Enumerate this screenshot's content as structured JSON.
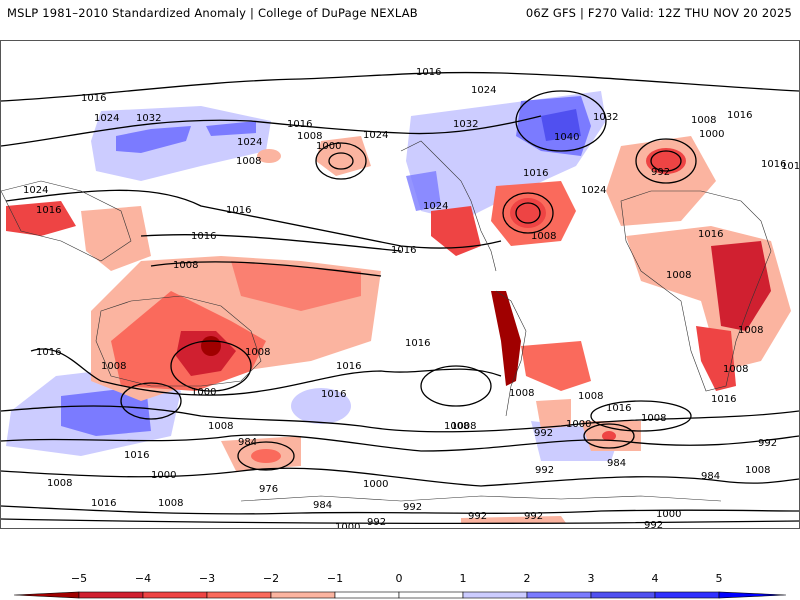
{
  "header": {
    "title_left": "MSLP 1981–2010 Standardized Anomaly | College of DuPage NEXLAB",
    "title_right": "06Z GFS | F270 Valid: 12Z THU NOV 20 2025"
  },
  "map": {
    "contour_labels": [
      {
        "text": "1016",
        "id": "nh-1016-top"
      },
      {
        "text": "1016",
        "id": "asia-1016"
      },
      {
        "text": "1024",
        "id": "asia-1024-a"
      },
      {
        "text": "1032",
        "id": "siberia-1032"
      },
      {
        "text": "1024",
        "id": "asia-1024-b"
      },
      {
        "text": "1016",
        "id": "pac-1016-a"
      },
      {
        "text": "1008",
        "id": "pac-1008-a"
      },
      {
        "text": "1000",
        "id": "pac-1000"
      },
      {
        "text": "1024",
        "id": "alaska-1024"
      },
      {
        "text": "1024",
        "id": "arctic-1024"
      },
      {
        "text": "1032",
        "id": "canada-1032"
      },
      {
        "text": "1040",
        "id": "greenland-1040"
      },
      {
        "text": "1032",
        "id": "greenland-1032"
      },
      {
        "text": "1008",
        "id": "eur-1008"
      },
      {
        "text": "1016",
        "id": "eur-1016"
      },
      {
        "text": "1000",
        "id": "eur-1000"
      },
      {
        "text": "992",
        "id": "eur-992"
      },
      {
        "text": "1016",
        "id": "asia-1016-right"
      },
      {
        "text": "1024",
        "id": "atl-1024"
      },
      {
        "text": "1016",
        "id": "atl-1016-a"
      },
      {
        "text": "1008",
        "id": "atl-1008"
      },
      {
        "text": "1024",
        "id": "us-1024"
      },
      {
        "text": "1016",
        "id": "india-1016"
      },
      {
        "text": "1024",
        "id": "china-1024"
      },
      {
        "text": "1016",
        "id": "pac-1016-b"
      },
      {
        "text": "1008",
        "id": "pac-1008-b"
      },
      {
        "text": "1016",
        "id": "epac-1016"
      },
      {
        "text": "1016",
        "id": "atl-1016-b"
      },
      {
        "text": "1016",
        "id": "africa-1016-n"
      },
      {
        "text": "1008",
        "id": "africa-1008-w"
      },
      {
        "text": "1008",
        "id": "africa-1008-e"
      },
      {
        "text": "1008",
        "id": "pac-1008-c"
      },
      {
        "text": "1016",
        "id": "io-1016"
      },
      {
        "text": "1008",
        "id": "aus-1008-w"
      },
      {
        "text": "1008",
        "id": "aus-1008-e"
      },
      {
        "text": "1000",
        "id": "aus-1000"
      },
      {
        "text": "1016",
        "id": "spac-1016-a"
      },
      {
        "text": "1016",
        "id": "spac-1016-b"
      },
      {
        "text": "1016",
        "id": "spac-1016-c"
      },
      {
        "text": "1008",
        "id": "sam-1008"
      },
      {
        "text": "1008",
        "id": "sam-1008-b"
      },
      {
        "text": "1008",
        "id": "safr-1008"
      },
      {
        "text": "1016",
        "id": "safr-1016"
      },
      {
        "text": "1008",
        "id": "sio-1008-a"
      },
      {
        "text": "1016",
        "id": "sio-1016"
      },
      {
        "text": "1008",
        "id": "safr-1008-b"
      },
      {
        "text": "1016",
        "id": "satl-1016"
      },
      {
        "text": "1008",
        "id": "satl-1008"
      },
      {
        "text": "1000",
        "id": "satl-1000"
      },
      {
        "text": "992",
        "id": "satl-992"
      },
      {
        "text": "984",
        "id": "satl-984"
      },
      {
        "text": "992",
        "id": "sio-992"
      },
      {
        "text": "984",
        "id": "sio-984"
      },
      {
        "text": "1008",
        "id": "so-1008-a"
      },
      {
        "text": "1016",
        "id": "so-1016-a"
      },
      {
        "text": "1008",
        "id": "so-1008-b"
      },
      {
        "text": "1000",
        "id": "so-1000-a"
      },
      {
        "text": "1016",
        "id": "so-1016-b"
      },
      {
        "text": "1008",
        "id": "so-1008-c"
      },
      {
        "text": "1008",
        "id": "so-1008-d"
      },
      {
        "text": "984",
        "id": "so-984-a"
      },
      {
        "text": "976",
        "id": "so-976"
      },
      {
        "text": "1000",
        "id": "so-1000-b"
      },
      {
        "text": "992",
        "id": "so-992-a"
      },
      {
        "text": "984",
        "id": "so-984-b"
      },
      {
        "text": "992",
        "id": "so-992-b"
      },
      {
        "text": "1000",
        "id": "so-1000-c"
      },
      {
        "text": "1008",
        "id": "so-1008-e"
      },
      {
        "text": "992",
        "id": "so-992-c"
      },
      {
        "text": "992",
        "id": "so-992-d"
      },
      {
        "text": "992",
        "id": "so-992-e"
      },
      {
        "text": "1000",
        "id": "so-1000-d"
      },
      {
        "text": "992",
        "id": "so-992-f"
      }
    ]
  },
  "colorbar": {
    "ticks": [
      "−5",
      "−4",
      "−3",
      "−2",
      "−1",
      "0",
      "1",
      "2",
      "3",
      "4",
      "5"
    ],
    "colors": {
      "lt_neg5": "#a00000",
      "neg5_neg4": "#d02030",
      "neg4_neg3": "#ee4444",
      "neg3_neg2": "#fa6a5c",
      "neg2_neg1": "#fbb4a0",
      "neg1_0": "#ffffff",
      "p0_1": "#ffffff",
      "p1_2": "#ccccff",
      "p2_3": "#7b7bff",
      "p3_4": "#5050f0",
      "p4_5": "#3030ff",
      "gt_5": "#0000ff"
    }
  }
}
